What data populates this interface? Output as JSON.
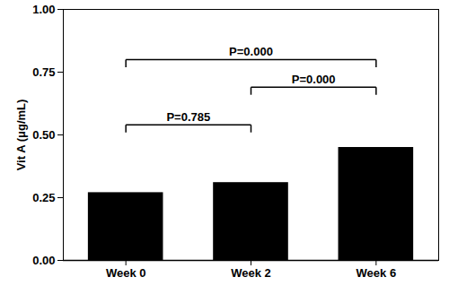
{
  "chart_data": {
    "type": "bar",
    "y_label": "Vit A (μg/mL)",
    "categories": [
      "Week 0",
      "Week 2",
      "Week 6"
    ],
    "values": [
      0.27,
      0.31,
      0.45
    ],
    "color": "#000000",
    "ylim": [
      0,
      1
    ],
    "yticks": [
      {
        "value": 0,
        "label": "0.00"
      },
      {
        "value": 0.25,
        "label": "0.25"
      },
      {
        "value": 0.5,
        "label": "0.50"
      },
      {
        "value": 0.75,
        "label": "0.75"
      },
      {
        "value": 1,
        "label": "1.00"
      }
    ],
    "comparisons": [
      {
        "from": "Week 0",
        "to": "Week 6",
        "y": 0.8,
        "label": "P=0.000"
      },
      {
        "from": "Week 0",
        "to": "Week 2",
        "y": 0.54,
        "label": "P=0.785"
      },
      {
        "from": "Week 2",
        "to": "Week 6",
        "y": 0.69,
        "label": "P=0.000"
      }
    ]
  }
}
